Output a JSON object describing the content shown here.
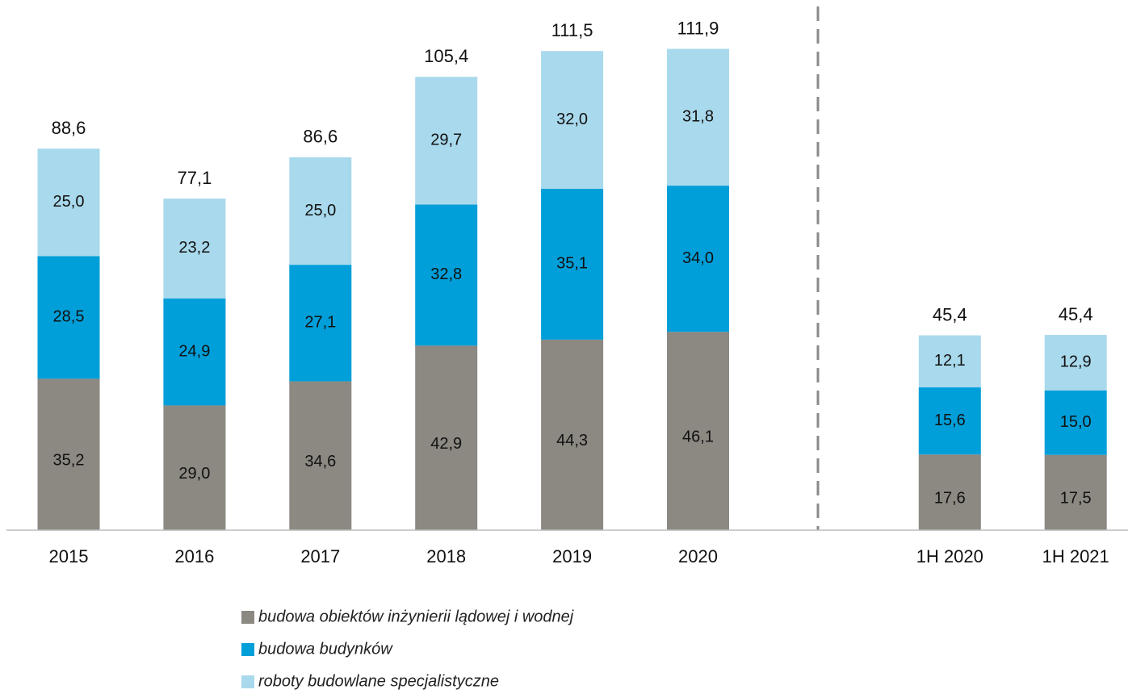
{
  "chart_data": {
    "type": "stacked_bar",
    "categories": [
      "2015",
      "2016",
      "2017",
      "2018",
      "2019",
      "2020",
      "1H 2020",
      "1H 2021"
    ],
    "series": [
      {
        "name": "budowa obiektów inżynierii lądowej i wodnej",
        "color": "#8c8882",
        "values": [
          35.2,
          29.0,
          34.6,
          42.9,
          44.3,
          46.1,
          17.6,
          17.5
        ],
        "value_labels": [
          "35,2",
          "29,0",
          "34,6",
          "42,9",
          "44,3",
          "46,1",
          "17,6",
          "17,5"
        ]
      },
      {
        "name": "budowa budynków",
        "color": "#009fd9",
        "values": [
          28.5,
          24.9,
          27.1,
          32.8,
          35.1,
          34.0,
          15.6,
          15.0
        ],
        "value_labels": [
          "28,5",
          "24,9",
          "27,1",
          "32,8",
          "35,1",
          "34,0",
          "15,6",
          "15,0"
        ]
      },
      {
        "name": "roboty budowlane specjalistyczne",
        "color": "#a9d9ec",
        "values": [
          25.0,
          23.2,
          25.0,
          29.7,
          32.0,
          31.8,
          12.1,
          12.9
        ],
        "value_labels": [
          "25,0",
          "23,2",
          "25,0",
          "29,7",
          "32,0",
          "31,8",
          "12,1",
          "12,9"
        ]
      }
    ],
    "totals": [
      88.6,
      77.1,
      86.6,
      105.4,
      111.5,
      111.9,
      45.4,
      45.4
    ],
    "total_labels": [
      "88,6",
      "77,1",
      "86,6",
      "105,4",
      "111,5",
      "111,9",
      "45,4",
      "45,4"
    ],
    "legend": "bottom"
  }
}
